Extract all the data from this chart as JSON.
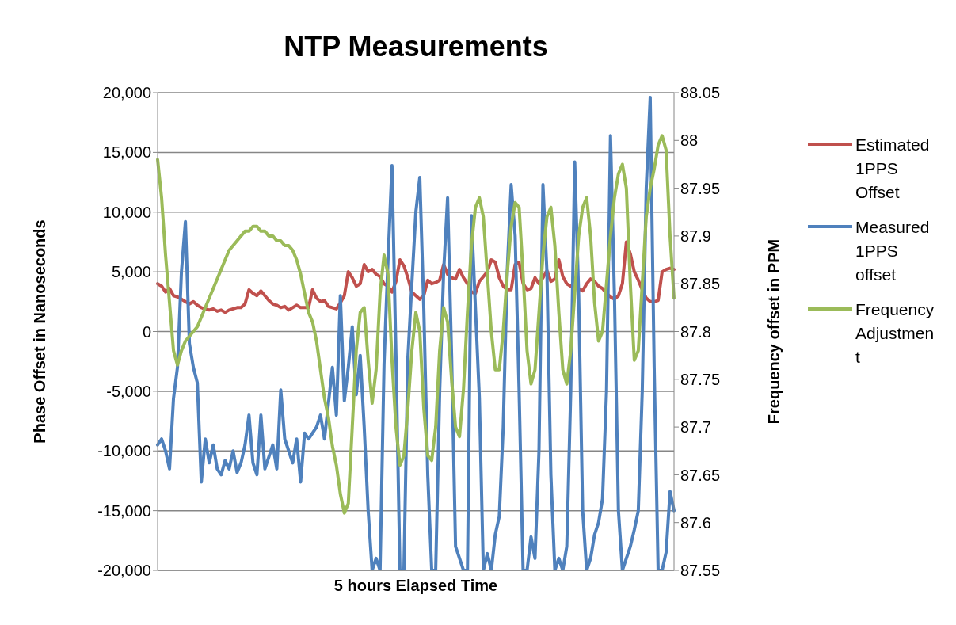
{
  "chart_data": {
    "type": "line",
    "title": "NTP Measurements",
    "xlabel": "5 hours Elapsed  Time",
    "ylabel": "Phase Offset in Nanoseconds",
    "y2label": "Frequency offset in PPM",
    "categories": [
      null,
      null,
      null,
      null,
      null,
      null,
      null,
      null,
      null,
      null,
      null,
      null,
      null,
      null,
      null,
      null,
      null,
      null,
      null,
      null,
      null,
      null,
      null,
      null,
      null,
      null,
      null,
      null,
      null,
      null,
      null,
      null,
      null,
      null,
      null,
      null,
      null,
      null,
      null,
      null,
      null,
      null,
      null,
      null,
      null,
      null,
      null,
      null,
      null,
      null,
      null,
      null,
      null,
      null,
      null,
      null,
      null,
      null,
      null,
      null,
      null,
      null,
      null,
      null,
      null,
      null,
      null,
      null,
      null,
      null,
      null,
      null,
      null,
      null,
      null,
      null,
      null,
      null,
      null,
      null,
      null,
      null,
      null,
      null,
      null,
      null,
      null,
      null,
      null,
      null,
      null,
      null,
      null,
      null,
      null,
      null,
      null,
      null,
      null,
      null,
      null,
      null,
      null,
      null,
      null,
      null,
      null,
      null,
      null,
      null,
      null,
      null,
      null,
      null,
      null,
      null,
      null,
      null,
      null,
      null,
      null,
      null,
      null,
      null,
      null,
      null,
      null,
      null,
      null,
      null,
      null
    ],
    "series": [
      {
        "name": "Estimated 1PPS Offset",
        "color": "#c0504d",
        "values": [
          4000,
          3800,
          3300,
          3600,
          3000,
          2900,
          2700,
          2500,
          2300,
          2500,
          2200,
          2000,
          1900,
          1800,
          1900,
          1700,
          1800,
          1600,
          1800,
          1900,
          2000,
          2000,
          2300,
          3500,
          3200,
          3000,
          3400,
          3000,
          2600,
          2300,
          2200,
          2000,
          2100,
          1800,
          2000,
          2200,
          2000,
          2000,
          2000,
          3500,
          2800,
          2500,
          2600,
          2100,
          2000,
          1900,
          2400,
          3000,
          5000,
          4500,
          3800,
          4000,
          5600,
          5000,
          5200,
          4800,
          4600,
          4000,
          3800,
          3300,
          4200,
          6000,
          5500,
          4500,
          3300,
          3000,
          2700,
          3000,
          4300,
          4000,
          4100,
          4300,
          5600,
          4800,
          4500,
          4400,
          5200,
          4500,
          4000,
          3300,
          3200,
          4200,
          4600,
          5000,
          6000,
          5800,
          4500,
          3800,
          3500,
          3500,
          5600,
          5800,
          4000,
          3500,
          3600,
          4500,
          4000,
          4500,
          5100,
          4200,
          4400,
          6000,
          4600,
          4000,
          3800,
          3700,
          3600,
          3400,
          4000,
          4400,
          4200,
          3800,
          3600,
          3200,
          2900,
          2700,
          3000,
          4000,
          7500,
          6500,
          5000,
          4300,
          3500,
          2800,
          2500,
          2500,
          2600,
          5000,
          5200,
          5300,
          5200
        ]
      },
      {
        "name": "Measured 1PPS offset",
        "color": "#4f81bd",
        "values": [
          -9500,
          -9000,
          -10000,
          -11500,
          -5600,
          -3000,
          5000,
          9200,
          -1000,
          -3000,
          -4300,
          -12600,
          -9000,
          -11000,
          -9500,
          -11500,
          -12000,
          -10800,
          -11500,
          -10000,
          -11800,
          -11000,
          -9500,
          -7000,
          -11000,
          -12000,
          -7000,
          -11500,
          -10500,
          -9500,
          -11500,
          -4900,
          -9000,
          -10000,
          -11000,
          -9000,
          -12600,
          -8500,
          -9000,
          -8500,
          -8000,
          -7000,
          -9000,
          -6000,
          -3000,
          -7000,
          3000,
          -5800,
          -3000,
          400,
          -5300,
          -2000,
          -8000,
          -15000,
          -20000,
          -19000,
          -20000,
          -2700,
          6000,
          13900,
          -2000,
          -20000,
          -20000,
          -2200,
          4000,
          10000,
          12900,
          2000,
          -12000,
          -20000,
          -20000,
          -5000,
          5000,
          11200,
          -2000,
          -18000,
          -19000,
          -20000,
          -20000,
          9700,
          2000,
          -5600,
          -20000,
          -18600,
          -20000,
          -17000,
          -15500,
          -8000,
          5000,
          12300,
          8000,
          -5000,
          -20000,
          -20000,
          -17200,
          -19000,
          -10000,
          12300,
          5000,
          -12000,
          -20000,
          -19000,
          -20000,
          -18000,
          -5000,
          14200,
          3000,
          -15000,
          -20000,
          -19000,
          -17000,
          -16000,
          -14000,
          -5000,
          16400,
          3000,
          -15000,
          -20000,
          -19000,
          -18000,
          -16600,
          -15000,
          -5000,
          12000,
          19600,
          -3000,
          -20000,
          -20000,
          -18500,
          -13400,
          -15000
        ]
      },
      {
        "name": "Frequency Adjustment",
        "color": "#9bbb59",
        "axis": "y2",
        "values": [
          87.98,
          87.94,
          87.88,
          87.83,
          87.78,
          87.765,
          87.78,
          87.79,
          87.795,
          87.8,
          87.805,
          87.815,
          87.825,
          87.835,
          87.845,
          87.855,
          87.865,
          87.875,
          87.885,
          87.89,
          87.895,
          87.9,
          87.905,
          87.905,
          87.91,
          87.91,
          87.905,
          87.905,
          87.9,
          87.9,
          87.895,
          87.895,
          87.89,
          87.89,
          87.885,
          87.875,
          87.86,
          87.84,
          87.82,
          87.81,
          87.79,
          87.76,
          87.73,
          87.71,
          87.68,
          87.66,
          87.63,
          87.61,
          87.62,
          87.7,
          87.78,
          87.82,
          87.825,
          87.77,
          87.725,
          87.76,
          87.84,
          87.88,
          87.86,
          87.77,
          87.7,
          87.66,
          87.67,
          87.72,
          87.78,
          87.82,
          87.8,
          87.72,
          87.67,
          87.665,
          87.7,
          87.78,
          87.825,
          87.81,
          87.75,
          87.7,
          87.69,
          87.74,
          87.82,
          87.89,
          87.93,
          87.94,
          87.92,
          87.86,
          87.8,
          87.76,
          87.76,
          87.8,
          87.86,
          87.91,
          87.935,
          87.93,
          87.86,
          87.78,
          87.745,
          87.76,
          87.82,
          87.88,
          87.92,
          87.93,
          87.89,
          87.82,
          87.76,
          87.745,
          87.78,
          87.84,
          87.9,
          87.93,
          87.94,
          87.9,
          87.83,
          87.79,
          87.8,
          87.85,
          87.9,
          87.94,
          87.965,
          87.975,
          87.95,
          87.85,
          87.77,
          87.78,
          87.85,
          87.92,
          87.95,
          87.97,
          87.995,
          88.005,
          87.99,
          87.9,
          87.835
        ]
      }
    ],
    "ylim": [
      -20000,
      20000
    ],
    "yticks": [
      {
        "value": -20000,
        "label": "-20,000"
      },
      {
        "value": -15000,
        "label": "-15,000"
      },
      {
        "value": -10000,
        "label": "-10,000"
      },
      {
        "value": -5000,
        "label": "-5,000"
      },
      0,
      {
        "value": 5000,
        "label": "5,000"
      },
      {
        "value": 10000,
        "label": "10,000"
      },
      {
        "value": 15000,
        "label": "15,000"
      },
      {
        "value": 20000,
        "label": "20,000"
      }
    ],
    "y2lim": [
      87.55,
      88.05
    ],
    "y2ticks": [
      87.55,
      87.6,
      87.65,
      87.7,
      87.75,
      87.8,
      87.85,
      87.9,
      87.95,
      88,
      88.05
    ],
    "grid": "y",
    "legend": "right"
  }
}
